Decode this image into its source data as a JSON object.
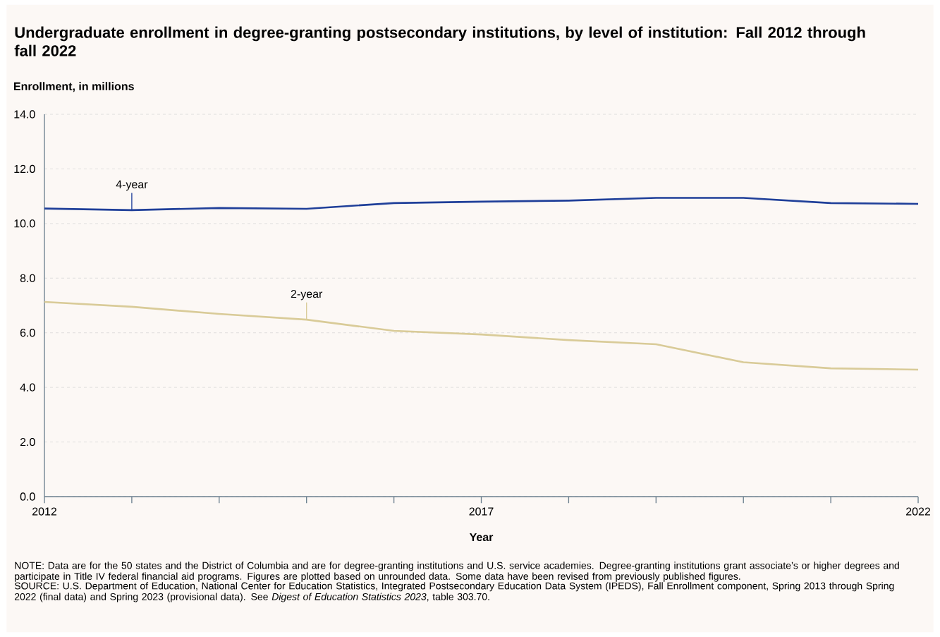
{
  "chart_data": {
    "type": "line",
    "title": "Undergraduate enrollment in degree-granting postsecondary institutions, by level of institution: Fall 2012 through fall 2022",
    "ylabel": "Enrollment, in millions",
    "xlabel": "Year",
    "x": [
      2012,
      2013,
      2014,
      2015,
      2016,
      2017,
      2018,
      2019,
      2020,
      2021,
      2022
    ],
    "series": [
      {
        "name": "4-year",
        "color": "#1f3f99",
        "values": [
          10.55,
          10.49,
          10.57,
          10.54,
          10.75,
          10.8,
          10.84,
          10.94,
          10.94,
          10.75,
          10.72
        ]
      },
      {
        "name": "2-year",
        "color": "#d9cb98",
        "values": [
          7.13,
          6.95,
          6.69,
          6.48,
          6.07,
          5.94,
          5.73,
          5.58,
          4.92,
          4.7,
          4.65
        ]
      }
    ],
    "xlim": [
      2012,
      2022
    ],
    "xticks": [
      2012,
      {
        "value": 2013,
        "label": null
      },
      {
        "value": 2014,
        "label": null
      },
      {
        "value": 2015,
        "label": null
      },
      {
        "value": 2016,
        "label": null
      },
      2017,
      {
        "value": 2018,
        "label": null
      },
      {
        "value": 2019,
        "label": null
      },
      {
        "value": 2020,
        "label": null
      },
      {
        "value": 2021,
        "label": null
      },
      2022
    ],
    "ylim": [
      0,
      14
    ],
    "yticks": [
      {
        "value": 0,
        "label": "0.0"
      },
      {
        "value": 2,
        "label": "2.0"
      },
      {
        "value": 4,
        "label": "4.0"
      },
      {
        "value": 6,
        "label": "6.0"
      },
      {
        "value": 8,
        "label": "8.0"
      },
      {
        "value": 10,
        "label": "10.0"
      },
      {
        "value": 12,
        "label": "12.0"
      },
      {
        "value": 14,
        "label": "14.0"
      }
    ],
    "grid": "y",
    "line_style": "solid",
    "annotations": [
      "NOTE: Data are for the 50 states and the District of Columbia and are for degree-granting institutions and U.S. service academies. Degree-granting institutions grant associate’s or higher degrees and participate in Title IV federal financial aid programs. Figures are plotted based on unrounded data. Some data have been revised from previously published figures.",
      "SOURCE: U.S. Department of Education, National Center for Education Statistics, Integrated Postsecondary Education Data System (IPEDS), Fall Enrollment component, Spring 2013 through Spring 2022 (final data) and Spring 2023 (provisional data). See *Digest of Education Statistics 2023*, table 303.70."
    ]
  }
}
